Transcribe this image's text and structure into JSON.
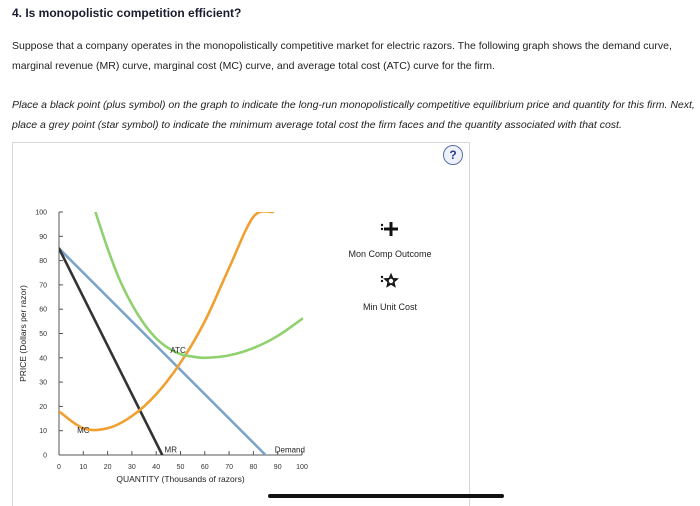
{
  "question": {
    "title": "4. Is monopolistic competition efficient?",
    "intro_line1": "Suppose that a company operates in the monopolistically competitive market for electric razors. The following graph shows the demand curve,",
    "intro_line2": "marginal revenue (MR) curve, marginal cost (MC) curve, and average total cost (ATC) curve for the firm.",
    "instruction_line1": "Place a black point (plus symbol) on the graph to indicate the long-run monopolistically competitive equilibrium price and quantity for this firm. Next,",
    "instruction_line2": "place a grey point (star symbol) to indicate the minimum average total cost the firm faces and the quantity associated with that cost."
  },
  "help_symbol": "?",
  "tools": [
    {
      "label": "Mon Comp Outcome",
      "icon": "plus-icon",
      "color": "#111111"
    },
    {
      "label": "Min Unit Cost",
      "icon": "star-icon",
      "color": "#111111"
    }
  ],
  "chart_data": {
    "type": "line",
    "title": "",
    "xlabel": "QUANTITY (Thousands of razors)",
    "ylabel": "PRICE (Dollars per razor)",
    "xlim": [
      0,
      100
    ],
    "ylim": [
      0,
      100
    ],
    "xticks": [
      0,
      10,
      20,
      30,
      40,
      50,
      60,
      70,
      80,
      90,
      100
    ],
    "yticks": [
      0,
      10,
      20,
      30,
      40,
      50,
      60,
      70,
      80,
      90,
      100
    ],
    "grid": false,
    "series": [
      {
        "name": "Demand",
        "label": "Demand",
        "color": "#7ba4c9",
        "x": [
          0,
          85
        ],
        "y": [
          85,
          0
        ]
      },
      {
        "name": "MR",
        "label": "MR",
        "color": "#333333",
        "x": [
          0,
          42.5
        ],
        "y": [
          85,
          0
        ]
      },
      {
        "name": "MC",
        "label": "MC",
        "color": "#f0a030",
        "x": [
          0,
          10,
          20,
          30,
          40,
          50,
          60,
          70,
          80,
          88
        ],
        "y": [
          18,
          11,
          11,
          16,
          25,
          38,
          55,
          77,
          98,
          100
        ]
      },
      {
        "name": "ATC",
        "label": "ATC",
        "color": "#8fd16e",
        "x": [
          15,
          20,
          25,
          30,
          35,
          40,
          45,
          50,
          55,
          60,
          70,
          80,
          90,
          100
        ],
        "y": [
          100,
          85,
          72,
          62,
          54,
          48,
          44,
          41.5,
          40.5,
          40,
          41,
          44,
          49,
          56
        ]
      }
    ],
    "annotations": [
      {
        "text": "ATC",
        "x": 49,
        "y": 42
      },
      {
        "text": "MC",
        "x": 10,
        "y": 9
      },
      {
        "text": "MR",
        "x": 46,
        "y": 1
      },
      {
        "text": "Demand",
        "x": 95,
        "y": 1
      }
    ]
  }
}
